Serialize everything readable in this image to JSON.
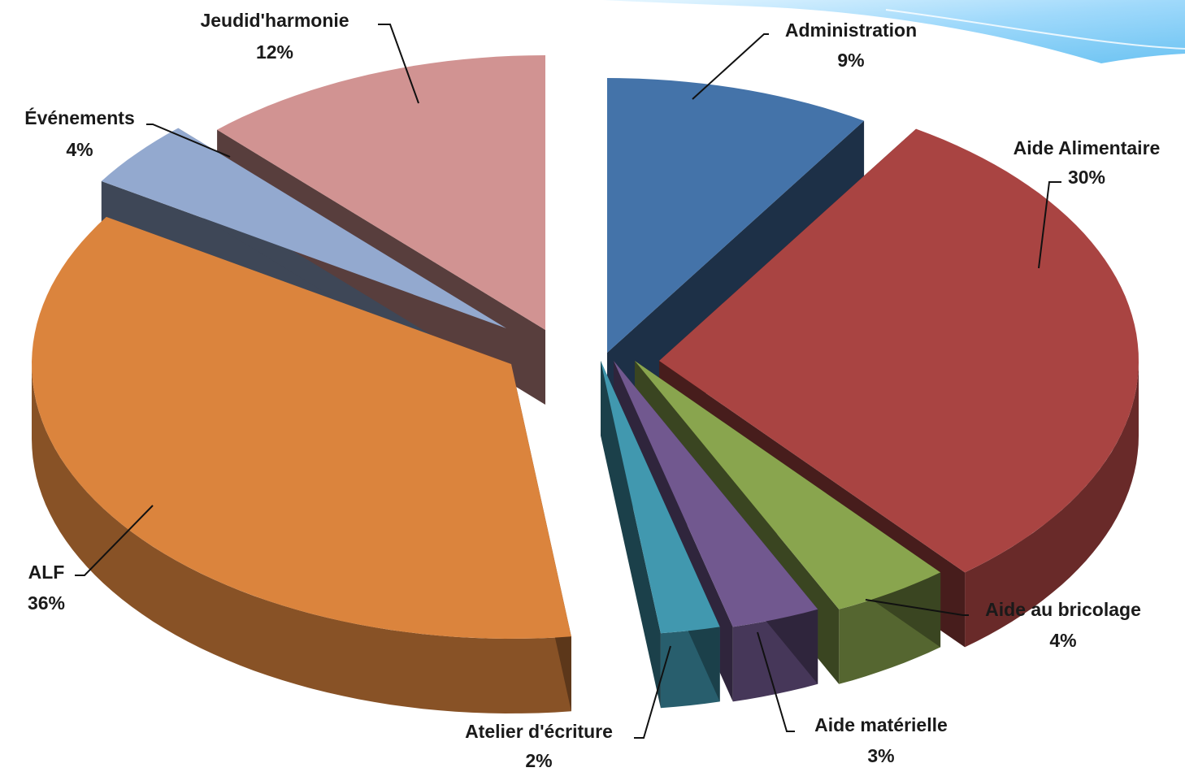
{
  "chart_data": {
    "type": "pie",
    "title": "",
    "legend": "none",
    "unit": "%",
    "slices": [
      {
        "key": "administration",
        "label": "Administration",
        "value": 9,
        "value_label": "9%",
        "color": "#4473a9"
      },
      {
        "key": "aide-alimentaire",
        "label": "Aide Alimentaire",
        "value": 30,
        "value_label": "30%",
        "color": "#a94442"
      },
      {
        "key": "aide-bricolage",
        "label": "Aide au bricolage",
        "value": 4,
        "value_label": "4%",
        "color": "#89a54e"
      },
      {
        "key": "aide-materielle",
        "label": "Aide matérielle",
        "value": 3,
        "value_label": "3%",
        "color": "#71588f"
      },
      {
        "key": "atelier-ecriture",
        "label": "Atelier d'écriture",
        "value": 2,
        "value_label": "2%",
        "color": "#4198af"
      },
      {
        "key": "alf",
        "label": "ALF",
        "value": 36,
        "value_label": "36%",
        "color": "#db843d"
      },
      {
        "key": "evenements",
        "label": "Événements",
        "value": 4,
        "value_label": "4%",
        "color": "#93a9cf"
      },
      {
        "key": "jeudi-harmonie",
        "label": "Jeudid'harmonie",
        "value": 12,
        "value_label": "12%",
        "color": "#d19392"
      }
    ]
  }
}
